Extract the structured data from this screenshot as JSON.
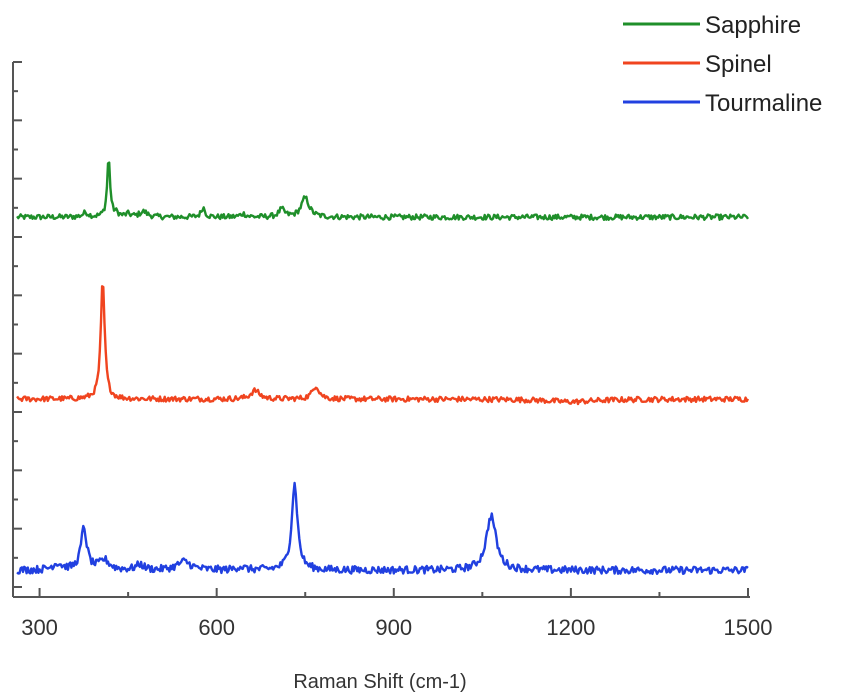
{
  "chart_data": {
    "type": "line",
    "title": "",
    "xlabel": "Raman Shift (cm-1)",
    "ylabel": "",
    "xlim": [
      255,
      1500
    ],
    "ylim": [
      0,
      10
    ],
    "x_ticks": [
      300,
      600,
      900,
      1200,
      1500
    ],
    "y_ticks_shown_without_labels": true,
    "grid": false,
    "legend_position": "top-right",
    "series": [
      {
        "name": "Sapphire",
        "color": "#1f8f2a",
        "baseline": 7.1,
        "noise": 0.05,
        "peaks": [
          {
            "x": 417,
            "height": 1.1,
            "width": 3
          },
          {
            "x": 378,
            "height": 0.08,
            "width": 6
          },
          {
            "x": 430,
            "height": 0.06,
            "width": 5
          },
          {
            "x": 450,
            "height": 0.05,
            "width": 5
          },
          {
            "x": 476,
            "height": 0.1,
            "width": 8
          },
          {
            "x": 577,
            "height": 0.18,
            "width": 4
          },
          {
            "x": 645,
            "height": 0.06,
            "width": 6
          },
          {
            "x": 710,
            "height": 0.14,
            "width": 6
          },
          {
            "x": 750,
            "height": 0.36,
            "width": 8
          }
        ]
      },
      {
        "name": "Spinel",
        "color": "#f0441f",
        "baseline": 3.7,
        "noise": 0.05,
        "peaks": [
          {
            "x": 407,
            "height": 2.2,
            "width": 4
          },
          {
            "x": 665,
            "height": 0.16,
            "width": 9
          },
          {
            "x": 768,
            "height": 0.25,
            "width": 7
          },
          {
            "x": 1200,
            "height": -0.05,
            "width": 50
          }
        ]
      },
      {
        "name": "Tourmaline",
        "color": "#2140e0",
        "baseline": 0.5,
        "noise": 0.07,
        "peaks": [
          {
            "x": 330,
            "height": 0.12,
            "width": 10
          },
          {
            "x": 375,
            "height": 0.78,
            "width": 6
          },
          {
            "x": 410,
            "height": 0.18,
            "width": 10
          },
          {
            "x": 470,
            "height": 0.1,
            "width": 8
          },
          {
            "x": 545,
            "height": 0.16,
            "width": 14
          },
          {
            "x": 640,
            "height": 0.06,
            "width": 8
          },
          {
            "x": 732,
            "height": 1.6,
            "width": 6
          },
          {
            "x": 1065,
            "height": 1.02,
            "width": 10
          }
        ]
      }
    ]
  }
}
